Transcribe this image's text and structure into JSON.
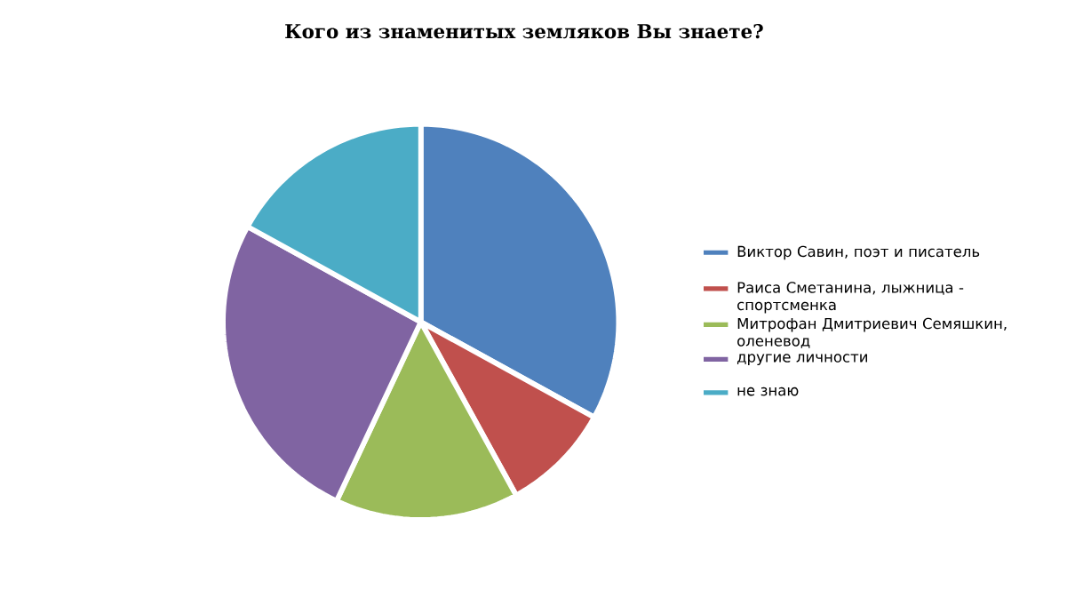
{
  "chart_data": {
    "type": "pie",
    "title": "Кого из знаменитых земляков Вы знаете?",
    "categories": [
      "Виктор Савин, поэт и писатель",
      "Раиса Сметанина, лыжница - спортсменка",
      "Митрофан Дмитриевич Семяшкин, оленевод",
      "другие личности",
      "не знаю"
    ],
    "values": [
      33,
      9,
      15,
      26,
      17
    ],
    "colors": [
      "#4f81bd",
      "#c0504d",
      "#9bbb59",
      "#8064a2",
      "#4bacc6"
    ],
    "legend": "right"
  }
}
